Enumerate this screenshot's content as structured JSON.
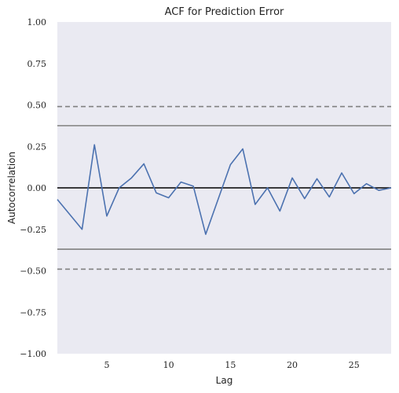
{
  "chart_data": {
    "type": "line",
    "title": "ACF for Prediction Error",
    "xlabel": "Lag",
    "ylabel": "Autocorrelation",
    "xlim": [
      1,
      28
    ],
    "ylim": [
      -1.0,
      1.0
    ],
    "xticks": [
      5,
      10,
      15,
      20,
      25
    ],
    "yticks": [
      1.0,
      0.75,
      0.5,
      0.25,
      0.0,
      -0.25,
      -0.5,
      -0.75,
      -1.0
    ],
    "ytick_labels": [
      "1.00",
      "0.75",
      "0.50",
      "0.25",
      "0.00",
      "−0.25",
      "−0.50",
      "−0.75",
      "−1.00"
    ],
    "grid": false,
    "series": [
      {
        "x": [
          1,
          2,
          3,
          4,
          5,
          6,
          7,
          8,
          9,
          10,
          11,
          12,
          13,
          14,
          15,
          16,
          17,
          18,
          19,
          20,
          21,
          22,
          23,
          24,
          25,
          26,
          27,
          28
        ],
        "values": [
          -0.07,
          -0.16,
          -0.25,
          0.26,
          -0.17,
          0.0,
          0.06,
          0.145,
          -0.03,
          -0.06,
          0.035,
          0.01,
          -0.28,
          -0.07,
          0.14,
          0.235,
          -0.1,
          0.0,
          -0.14,
          0.06,
          -0.065,
          0.055,
          -0.055,
          0.09,
          -0.035,
          0.025,
          -0.015,
          0.0
        ]
      }
    ],
    "reference_lines": {
      "zero": 0.0,
      "conf_solid": [
        0.375,
        -0.37
      ],
      "conf_dashed": [
        0.49,
        -0.49
      ]
    },
    "colors": {
      "series": "#4c72b0",
      "background": "#eaeaf2",
      "zero_line": "#000000",
      "conf_line": "#808080"
    }
  }
}
